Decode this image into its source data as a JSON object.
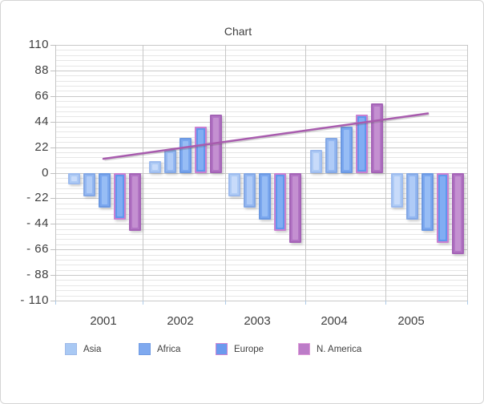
{
  "chart_data": {
    "type": "bar",
    "title": "Chart",
    "categories": [
      "2001",
      "2002",
      "2003",
      "2004",
      "2005"
    ],
    "series": [
      {
        "name": "Asia",
        "values": [
          -10,
          10,
          -20,
          20,
          -30
        ],
        "fill": "#AECBF5",
        "inner": "#C8DBFA",
        "border": "#9DBBEE"
      },
      {
        "name": "",
        "values": [
          -20,
          20,
          -30,
          30,
          -40
        ],
        "fill": "#93B7F1",
        "inner": "#AFCBF7",
        "border": "#84A8E5"
      },
      {
        "name": "Africa",
        "values": [
          -30,
          30,
          -40,
          40,
          -50
        ],
        "fill": "#7AA7EF",
        "inner": "#97BDF5",
        "border": "#6C99E2"
      },
      {
        "name": "Europe",
        "values": [
          -40,
          40,
          -50,
          50,
          -60
        ],
        "fill": "#6097ED",
        "inner": "#81ADF3",
        "border": "#C980D1"
      },
      {
        "name": "N. America",
        "values": [
          -50,
          50,
          -60,
          60,
          -70
        ],
        "fill": "#B274C4",
        "inner": "#C490D1",
        "border": "#A463B6"
      }
    ],
    "trendline": {
      "start_value": 12,
      "end_value": 51,
      "color": "#A85BAE"
    },
    "y_axis": {
      "min": -110,
      "max": 110,
      "major_step": 22,
      "minor_step": 4.4,
      "tick_labels": [
        {
          "v": 110,
          "label": "110"
        },
        {
          "v": 88,
          "label": "88"
        },
        {
          "v": 66,
          "label": "66"
        },
        {
          "v": 44,
          "label": "44"
        },
        {
          "v": 22,
          "label": "22"
        },
        {
          "v": 0,
          "label": "0"
        },
        {
          "v": -22,
          "label": "- 22"
        },
        {
          "v": -44,
          "label": "- 44"
        },
        {
          "v": -66,
          "label": "- 66"
        },
        {
          "v": -88,
          "label": "- 88"
        },
        {
          "v": -110,
          "label": "- 110"
        }
      ]
    },
    "legend": [
      {
        "label": "Asia",
        "fill": "#A9C9F4",
        "border": "#9FBAE8"
      },
      {
        "label": "Africa",
        "fill": "#7FA9EF",
        "border": "#709BE3"
      },
      {
        "label": "Europe",
        "fill": "#6B9AEE",
        "border": "#CC85D0"
      },
      {
        "label": "N. America",
        "fill": "#BC7CC8",
        "border": "#DD9BD9"
      }
    ],
    "grid": {
      "major_color": "#C9C9C9",
      "minor_color": "#E6E6E6",
      "column_line_color": "#C7C7C7",
      "axis_tick_color": "#C0C0C0",
      "bottom_tick_color": "#AECBE8"
    }
  }
}
